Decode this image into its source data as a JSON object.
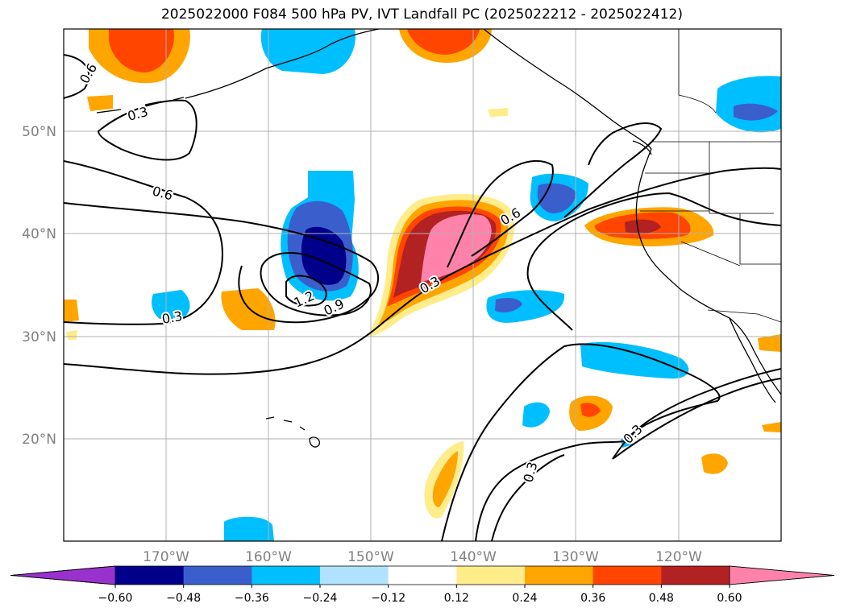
{
  "title": "2025022000 F084 500 hPa PV, IVT Landfall PC (2025022212 - 2025022412)",
  "map": {
    "lon_range": [
      -180,
      -110
    ],
    "lat_range": [
      10,
      60
    ],
    "x_ticks": [
      "170°W",
      "160°W",
      "150°W",
      "140°W",
      "130°W",
      "120°W"
    ],
    "y_ticks": [
      "50°N",
      "40°N",
      "30°N",
      "20°N"
    ],
    "gridlines": true,
    "contour_labels": [
      "0.6",
      "0.3",
      "0.6",
      "1.2",
      "0.9",
      "0.3",
      "0.3",
      "0.6",
      "0.3",
      "0.3"
    ]
  },
  "colorbar": {
    "tick_labels": [
      "−0.60",
      "−0.48",
      "−0.36",
      "−0.24",
      "−0.12",
      "0.12",
      "0.24",
      "0.36",
      "0.48",
      "0.60"
    ],
    "colors": [
      "#9932cc",
      "#00008b",
      "#3a5fcd",
      "#00bfff",
      "#b0e2ff",
      "#ffffff",
      "#ffec8b",
      "#ffa500",
      "#ff4500",
      "#b22222",
      "#ff82ab"
    ],
    "extend": "both"
  }
}
